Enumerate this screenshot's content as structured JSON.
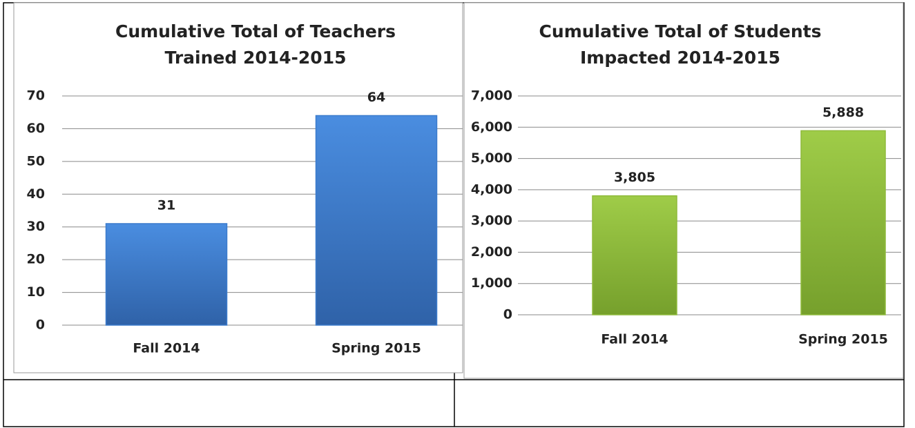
{
  "chart_data": [
    {
      "type": "bar",
      "title": "Cumulative Total of Teachers Trained 2014-2015",
      "categories": [
        "Fall 2014",
        "Spring 2015"
      ],
      "values": [
        31,
        64
      ],
      "color": "#3b7bcc",
      "ylim": [
        0,
        70
      ],
      "yticks": [
        0,
        10,
        20,
        30,
        40,
        50,
        60,
        70
      ],
      "grid": true
    },
    {
      "type": "bar",
      "title": "Cumulative Total of Students Impacted 2014-2015",
      "categories": [
        "Fall 2014",
        "Spring 2015"
      ],
      "values": [
        3805,
        5888
      ],
      "value_labels": [
        "3,805",
        "5,888"
      ],
      "color": "#8fba3c",
      "ylim": [
        0,
        7000
      ],
      "yticks": [
        0,
        {
          "value": 1000,
          "label": "1,000"
        },
        {
          "value": 2000,
          "label": "2,000"
        },
        {
          "value": 3000,
          "label": "3,000"
        },
        {
          "value": 4000,
          "label": "4,000"
        },
        {
          "value": 5000,
          "label": "5,000"
        },
        {
          "value": 6000,
          "label": "6,000"
        },
        {
          "value": 7000,
          "label": "7,000"
        }
      ],
      "grid": true
    }
  ]
}
